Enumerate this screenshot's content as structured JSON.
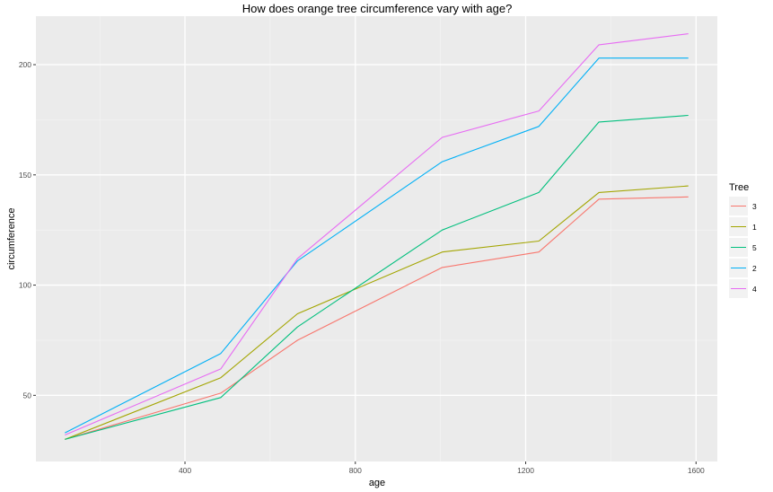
{
  "chart_data": {
    "type": "line",
    "title": "How does orange tree circumference vary with age?",
    "xlabel": "age",
    "ylabel": "circumference",
    "x": [
      118,
      484,
      664,
      1004,
      1231,
      1372,
      1582
    ],
    "xlim": [
      50,
      1650
    ],
    "ylim": [
      20,
      222
    ],
    "xticks": [
      400,
      800,
      1200,
      1600
    ],
    "xminor": [
      200,
      600,
      1000,
      1400
    ],
    "yticks": [
      50,
      100,
      150,
      200
    ],
    "yminor": [
      75,
      125,
      175
    ],
    "grid": true,
    "legend": {
      "title": "Tree",
      "placement": "right"
    },
    "series": [
      {
        "name": "3",
        "color": "#F8766D",
        "values": [
          30,
          51,
          75,
          108,
          115,
          139,
          140
        ]
      },
      {
        "name": "1",
        "color": "#A3A500",
        "values": [
          30,
          58,
          87,
          115,
          120,
          142,
          145
        ]
      },
      {
        "name": "5",
        "color": "#00BF7D",
        "values": [
          30,
          49,
          81,
          125,
          142,
          174,
          177
        ]
      },
      {
        "name": "2",
        "color": "#00B0F6",
        "values": [
          33,
          69,
          111,
          156,
          172,
          203,
          203
        ]
      },
      {
        "name": "4",
        "color": "#E76BF3",
        "values": [
          32,
          62,
          112,
          167,
          179,
          209,
          214
        ]
      }
    ]
  }
}
